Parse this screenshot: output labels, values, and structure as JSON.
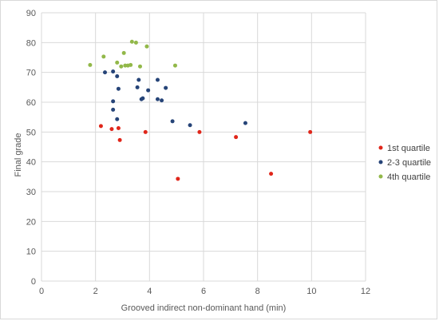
{
  "chart_data": {
    "type": "scatter",
    "xlabel": "Grooved indirect non-dominant hand (min)",
    "ylabel": "Final grade",
    "xlim": [
      0,
      12
    ],
    "ylim": [
      0,
      90
    ],
    "x_ticks": [
      0,
      2,
      4,
      6,
      8,
      10,
      12
    ],
    "y_ticks": [
      0,
      10,
      20,
      30,
      40,
      50,
      60,
      70,
      80,
      90
    ],
    "grid": "major gridlines on both axes",
    "legend_position": "right",
    "series": [
      {
        "name": "1st quartile",
        "color": "#e0261a",
        "points": [
          [
            2.2,
            52
          ],
          [
            2.6,
            51
          ],
          [
            2.85,
            51.3
          ],
          [
            2.9,
            47.3
          ],
          [
            3.85,
            50
          ],
          [
            5.05,
            34.3
          ],
          [
            5.85,
            50
          ],
          [
            7.2,
            48.3
          ],
          [
            8.5,
            36
          ],
          [
            9.95,
            50
          ]
        ]
      },
      {
        "name": "2-3 quartile",
        "color": "#264478",
        "points": [
          [
            2.35,
            70
          ],
          [
            2.65,
            70.3
          ],
          [
            2.8,
            68.7
          ],
          [
            2.85,
            64.5
          ],
          [
            2.65,
            60.3
          ],
          [
            2.65,
            57.5
          ],
          [
            2.8,
            54.3
          ],
          [
            3.55,
            65
          ],
          [
            3.6,
            67.5
          ],
          [
            3.7,
            61
          ],
          [
            3.75,
            61.3
          ],
          [
            3.95,
            64
          ],
          [
            4.3,
            67.5
          ],
          [
            4.3,
            61
          ],
          [
            4.45,
            60.6
          ],
          [
            4.6,
            64.8
          ],
          [
            4.85,
            53.6
          ],
          [
            5.5,
            52.3
          ],
          [
            7.55,
            53
          ]
        ]
      },
      {
        "name": "4th quartile",
        "color": "#92b849",
        "points": [
          [
            1.8,
            72.5
          ],
          [
            2.3,
            75.3
          ],
          [
            2.8,
            73.3
          ],
          [
            2.95,
            72
          ],
          [
            3.05,
            76.5
          ],
          [
            3.1,
            72.3
          ],
          [
            3.2,
            72.3
          ],
          [
            3.3,
            72.5
          ],
          [
            3.35,
            80.3
          ],
          [
            3.5,
            80
          ],
          [
            3.65,
            72
          ],
          [
            3.9,
            78.7
          ],
          [
            4.95,
            72.3
          ]
        ]
      }
    ]
  }
}
